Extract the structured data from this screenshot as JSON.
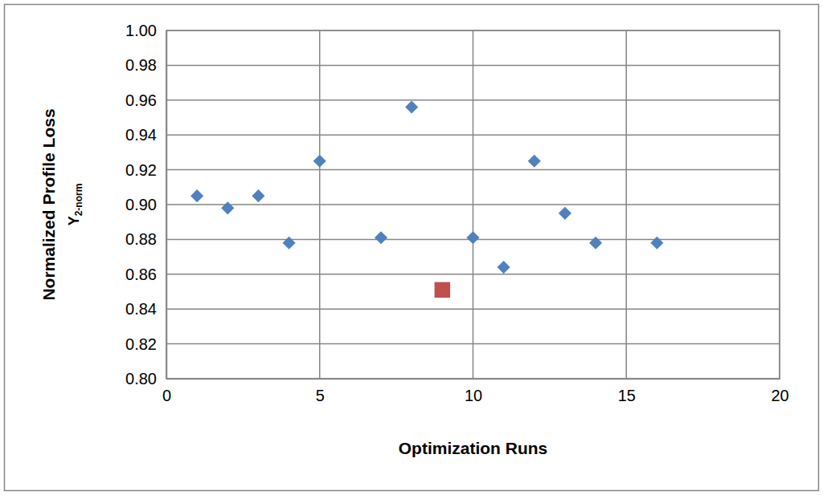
{
  "chart_data": {
    "type": "scatter",
    "xlabel": "Optimization Runs",
    "ylabel": "Normalized Profile Loss",
    "ylabel_symbol": "Y",
    "ylabel_subscript": "2-norm",
    "xlim": [
      0,
      20
    ],
    "xticks": [
      0,
      5,
      10,
      15,
      20
    ],
    "ylim": [
      0.8,
      1
    ],
    "yticks": [
      {
        "value": 0.8,
        "label": "0.80"
      },
      {
        "value": 0.82,
        "label": "0.82"
      },
      {
        "value": 0.84,
        "label": "0.84"
      },
      {
        "value": 0.86,
        "label": "0.86"
      },
      {
        "value": 0.88,
        "label": "0.88"
      },
      {
        "value": 0.9,
        "label": "0.90"
      },
      {
        "value": 0.92,
        "label": "0.92"
      },
      {
        "value": 0.94,
        "label": "0.94"
      },
      {
        "value": 0.96,
        "label": "0.96"
      },
      {
        "value": 0.98,
        "label": "0.98"
      },
      {
        "value": 1,
        "label": "1.00"
      }
    ],
    "grid": true,
    "series": [
      {
        "color": "#4f81bd",
        "marker": "diamond",
        "x": [
          1,
          2,
          3,
          4,
          5,
          7,
          8,
          10,
          11,
          12,
          13,
          14,
          16
        ],
        "values": [
          0.905,
          0.898,
          0.905,
          0.878,
          0.925,
          0.881,
          0.956,
          0.881,
          0.864,
          0.925,
          0.895,
          0.878,
          0.878
        ]
      },
      {
        "color": "#c0504d",
        "marker": "square",
        "x": [
          9
        ],
        "values": [
          0.851
        ]
      }
    ]
  }
}
